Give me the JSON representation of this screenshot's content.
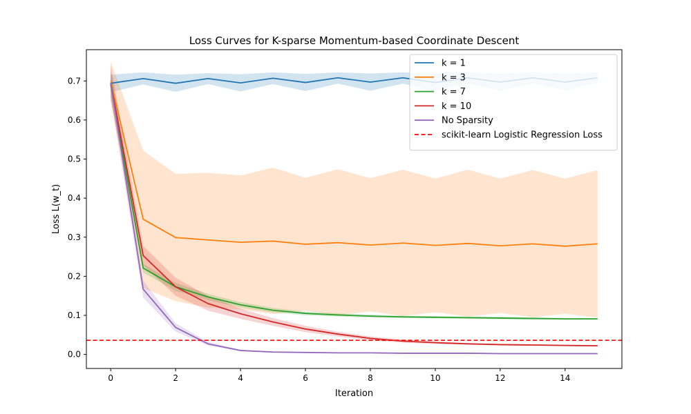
{
  "chart_data": {
    "type": "line",
    "title": "Loss Curves for K-sparse Momentum-based Coordinate Descent",
    "xlabel": "Iteration",
    "ylabel": "Loss L(w_t)",
    "xlim": [
      -0.75,
      15.75
    ],
    "ylim": [
      -0.036,
      0.78
    ],
    "xticks": [
      0,
      2,
      4,
      6,
      8,
      10,
      12,
      14
    ],
    "xtick_labels": [
      "0",
      "2",
      "4",
      "6",
      "8",
      "10",
      "12",
      "14"
    ],
    "yticks": [
      0.0,
      0.1,
      0.2,
      0.3,
      0.4,
      0.5,
      0.6,
      0.7
    ],
    "ytick_labels": [
      "0.0",
      "0.1",
      "0.2",
      "0.3",
      "0.4",
      "0.5",
      "0.6",
      "0.7"
    ],
    "grid": false,
    "legend_position": "top-right",
    "x": [
      0,
      1,
      2,
      3,
      4,
      5,
      6,
      7,
      8,
      9,
      10,
      11,
      12,
      13,
      14,
      15
    ],
    "series": [
      {
        "name": "k = 1",
        "color": "#1f77b4",
        "values": [
          0.694,
          0.706,
          0.694,
          0.706,
          0.695,
          0.707,
          0.696,
          0.708,
          0.697,
          0.708,
          0.696,
          0.708,
          0.697,
          0.708,
          0.697,
          0.708
        ],
        "lower": [
          0.671,
          0.691,
          0.672,
          0.692,
          0.673,
          0.692,
          0.674,
          0.693,
          0.675,
          0.693,
          0.674,
          0.694,
          0.675,
          0.694,
          0.676,
          0.695
        ],
        "upper": [
          0.716,
          0.722,
          0.716,
          0.72,
          0.717,
          0.722,
          0.718,
          0.722,
          0.719,
          0.722,
          0.718,
          0.722,
          0.719,
          0.722,
          0.719,
          0.722
        ]
      },
      {
        "name": "k = 3",
        "color": "#ff7f0e",
        "values": [
          0.7,
          0.346,
          0.299,
          0.293,
          0.287,
          0.29,
          0.282,
          0.286,
          0.28,
          0.285,
          0.279,
          0.284,
          0.278,
          0.283,
          0.277,
          0.283
        ],
        "lower": [
          0.65,
          0.17,
          0.136,
          0.12,
          0.115,
          0.103,
          0.112,
          0.1,
          0.11,
          0.098,
          0.108,
          0.097,
          0.106,
          0.095,
          0.104,
          0.094
        ],
        "upper": [
          0.75,
          0.522,
          0.462,
          0.465,
          0.458,
          0.478,
          0.452,
          0.474,
          0.451,
          0.473,
          0.45,
          0.473,
          0.45,
          0.472,
          0.45,
          0.472
        ]
      },
      {
        "name": "k = 7",
        "color": "#2ca02c",
        "values": [
          0.69,
          0.221,
          0.173,
          0.147,
          0.127,
          0.113,
          0.105,
          0.101,
          0.098,
          0.096,
          0.095,
          0.094,
          0.093,
          0.092,
          0.091,
          0.091
        ],
        "lower": [
          0.66,
          0.21,
          0.163,
          0.139,
          0.12,
          0.107,
          0.1,
          0.097,
          0.094,
          0.093,
          0.092,
          0.091,
          0.09,
          0.089,
          0.089,
          0.089
        ],
        "upper": [
          0.72,
          0.232,
          0.183,
          0.155,
          0.134,
          0.119,
          0.11,
          0.105,
          0.102,
          0.099,
          0.098,
          0.097,
          0.096,
          0.095,
          0.093,
          0.093
        ]
      },
      {
        "name": "k = 10",
        "color": "#d62728",
        "values": [
          0.695,
          0.253,
          0.173,
          0.13,
          0.104,
          0.083,
          0.065,
          0.052,
          0.041,
          0.034,
          0.03,
          0.027,
          0.025,
          0.024,
          0.023,
          0.022
        ],
        "lower": [
          0.65,
          0.228,
          0.15,
          0.112,
          0.091,
          0.073,
          0.057,
          0.046,
          0.036,
          0.03,
          0.027,
          0.025,
          0.023,
          0.022,
          0.021,
          0.02
        ],
        "upper": [
          0.74,
          0.278,
          0.196,
          0.15,
          0.117,
          0.093,
          0.073,
          0.058,
          0.046,
          0.038,
          0.033,
          0.029,
          0.027,
          0.026,
          0.025,
          0.024
        ]
      },
      {
        "name": "No Sparsity",
        "color": "#9467bd",
        "values": [
          0.695,
          0.167,
          0.069,
          0.027,
          0.01,
          0.006,
          0.005,
          0.004,
          0.004,
          0.003,
          0.003,
          0.003,
          0.002,
          0.002,
          0.002,
          0.002
        ],
        "lower": [
          0.66,
          0.145,
          0.058,
          0.023,
          0.008,
          0.005,
          0.004,
          0.003,
          0.003,
          0.002,
          0.002,
          0.002,
          0.001,
          0.001,
          0.001,
          0.001
        ],
        "upper": [
          0.73,
          0.189,
          0.08,
          0.032,
          0.012,
          0.008,
          0.006,
          0.005,
          0.005,
          0.004,
          0.004,
          0.004,
          0.003,
          0.003,
          0.003,
          0.003
        ]
      }
    ],
    "reference_line": {
      "name": "scikit-learn Logistic Regression Loss",
      "color": "#ff0000",
      "style": "dashed",
      "value": 0.036
    }
  }
}
